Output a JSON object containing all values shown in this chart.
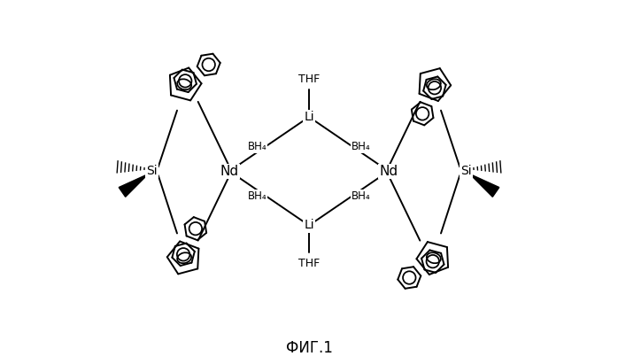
{
  "title": "ФИГ.1",
  "title_fontsize": 12,
  "background": "#ffffff",
  "figsize": [
    6.98,
    4.11
  ],
  "dpi": 100,
  "xlim": [
    -1,
    11
  ],
  "ylim": [
    -0.5,
    9.5
  ]
}
